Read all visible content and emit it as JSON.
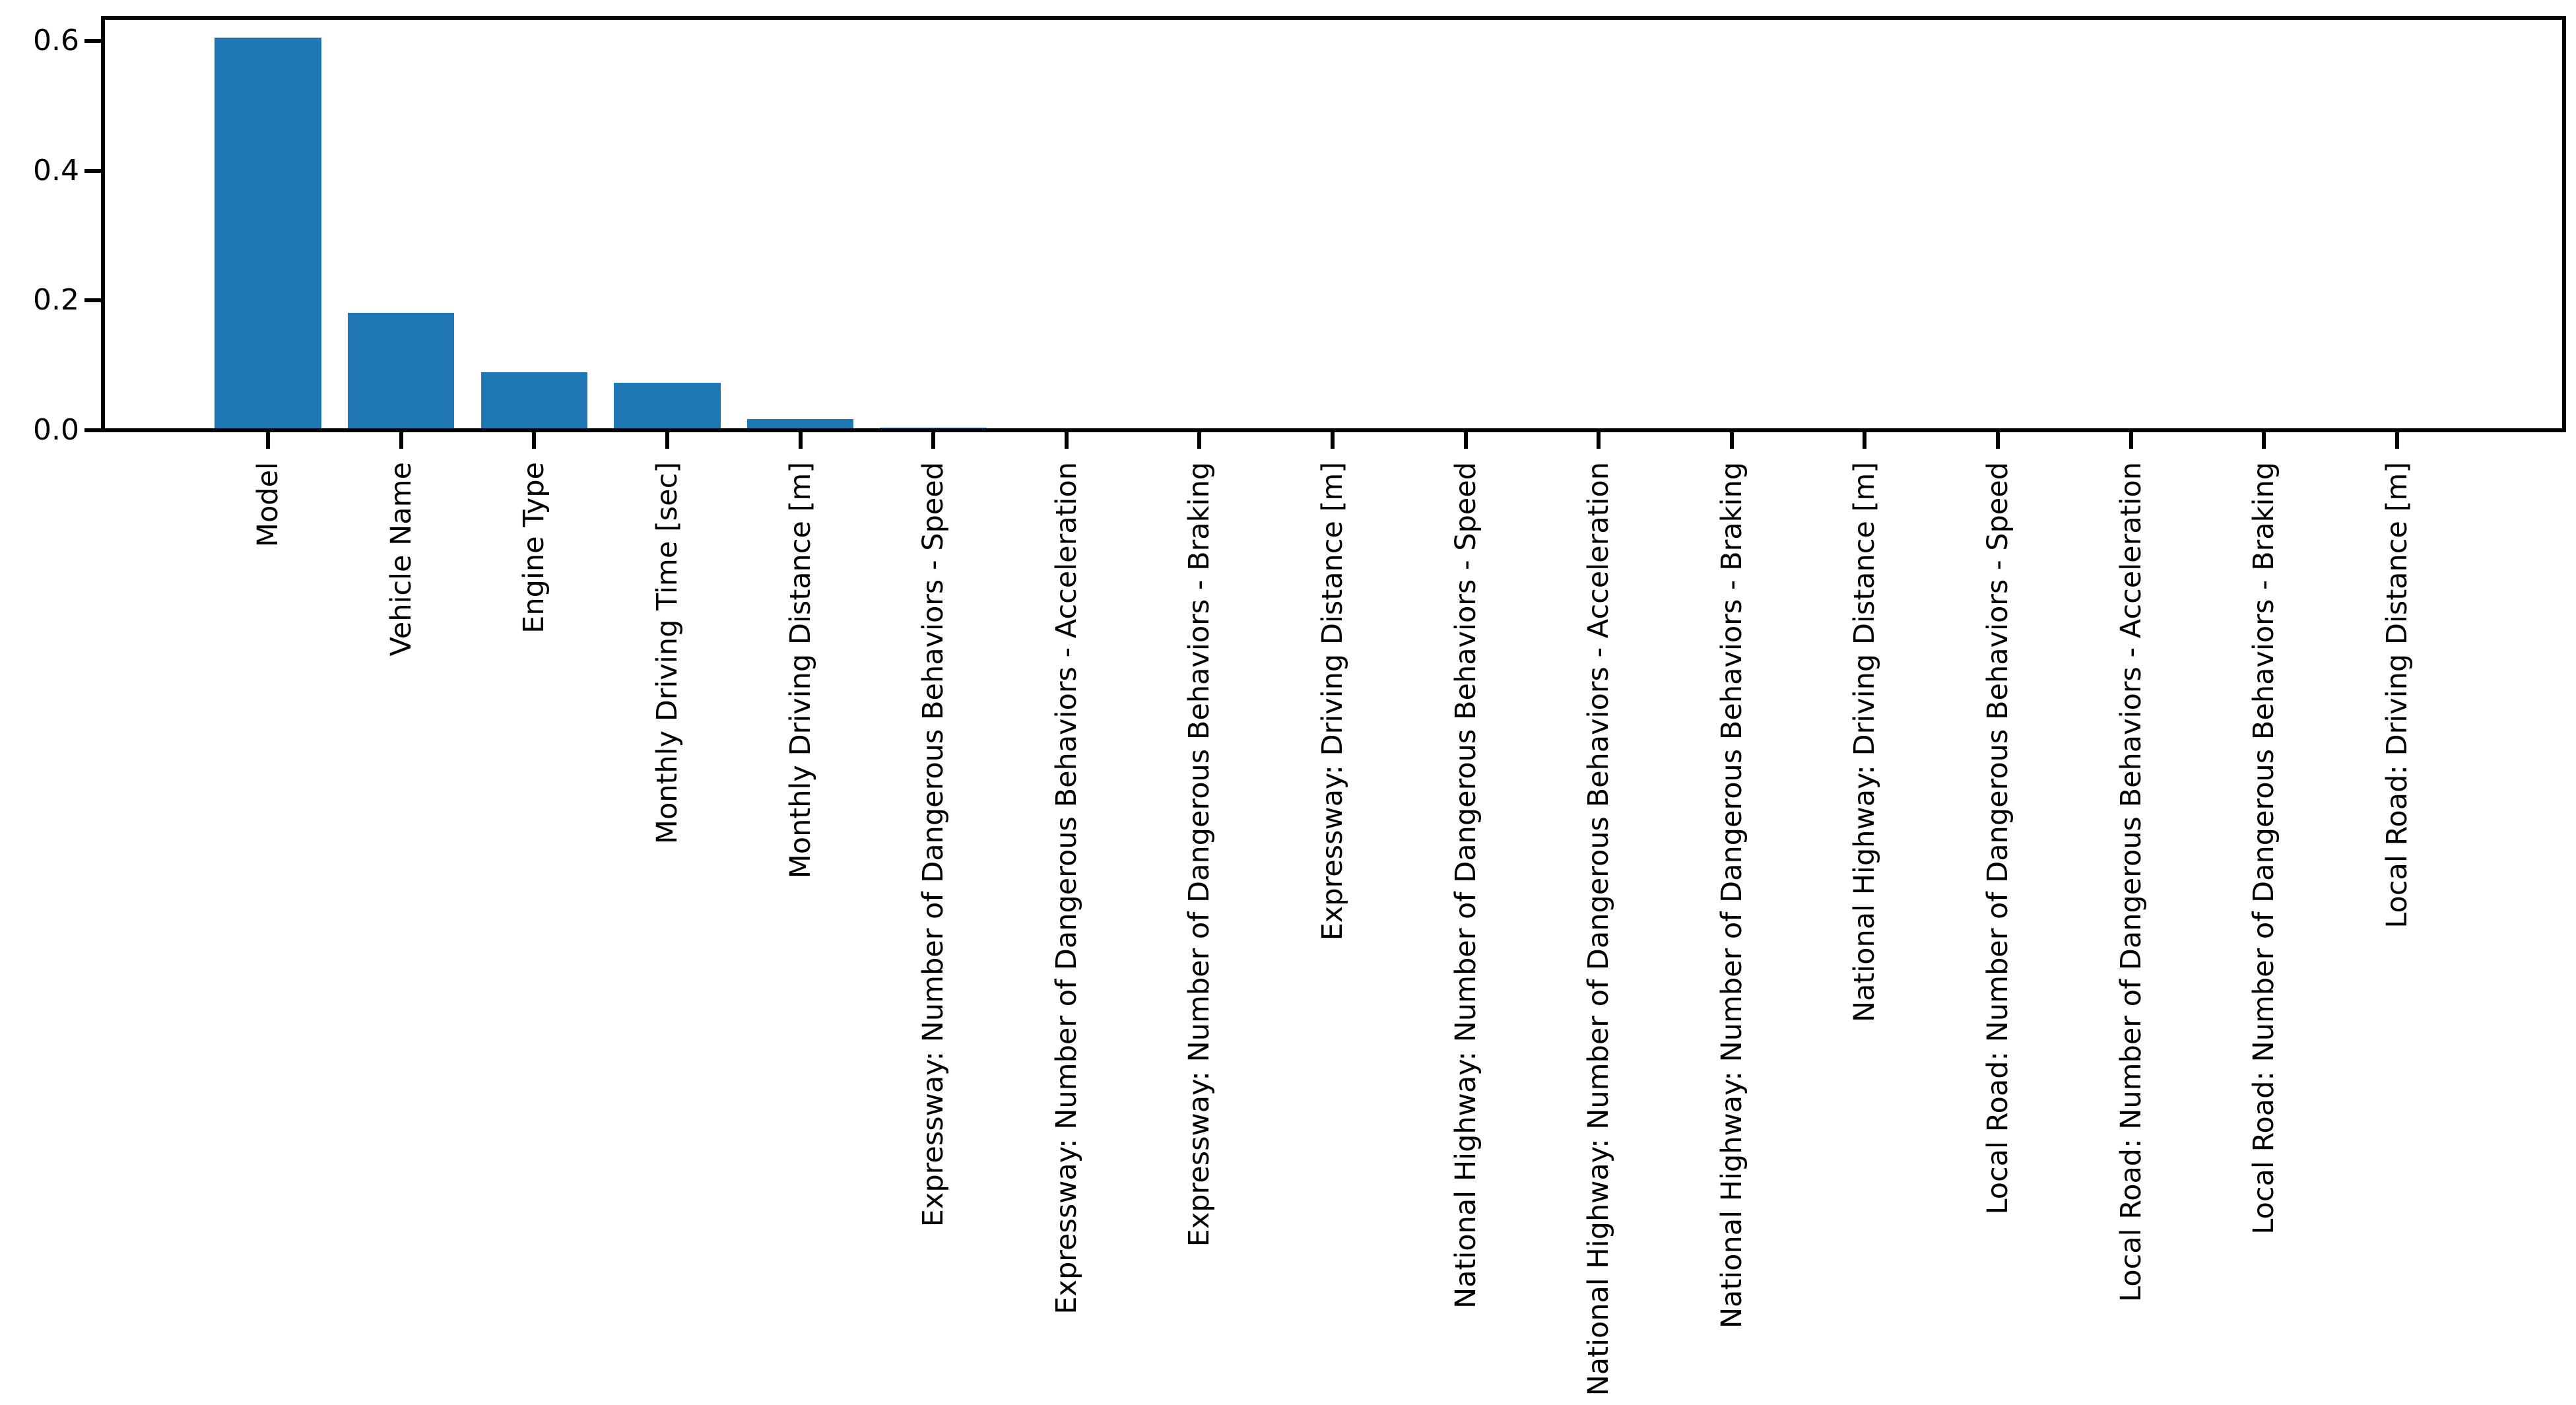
{
  "chart_data": {
    "type": "bar",
    "title": "",
    "xlabel": "",
    "ylabel": "",
    "categories": [
      "Model",
      "Vehicle Name",
      "Engine Type",
      "Monthly Driving Time [sec]",
      "Monthly Driving Distance [m]",
      "Expressway: Number of Dangerous Behaviors - Speed",
      "Expressway: Number of Dangerous Behaviors - Acceleration",
      "Expressway: Number of Dangerous Behaviors - Braking",
      "Expressway: Driving Distance [m]",
      "National Highway: Number of Dangerous Behaviors - Speed",
      "National Highway: Number of Dangerous Behaviors - Acceleration",
      "National Highway: Number of Dangerous Behaviors - Braking",
      "National Highway: Driving Distance [m]",
      "Local Road: Number of Dangerous Behaviors - Speed",
      "Local Road: Number of Dangerous Behaviors - Acceleration",
      "Local Road: Number of Dangerous Behaviors - Braking",
      "Local Road: Driving Distance [m]"
    ],
    "values": [
      0.605,
      0.181,
      0.09,
      0.073,
      0.017,
      0.0045,
      0.003,
      0.0,
      0.0,
      0.0,
      0.0,
      0.0,
      0.0,
      0.0,
      0.0,
      0.0,
      0.0
    ],
    "ytick_labels": [
      "0.0",
      "0.2",
      "0.4",
      "0.6"
    ],
    "ytick_values": [
      0.0,
      0.2,
      0.4,
      0.6
    ],
    "ylim": [
      0.0,
      0.636
    ],
    "xlim": [
      -1.24,
      17.24
    ],
    "bar_width": 0.8,
    "bar_color": "#1f77b4",
    "axis_color": "#000000",
    "grid": false,
    "legend": null,
    "x_tick_label_rotation": 90
  }
}
